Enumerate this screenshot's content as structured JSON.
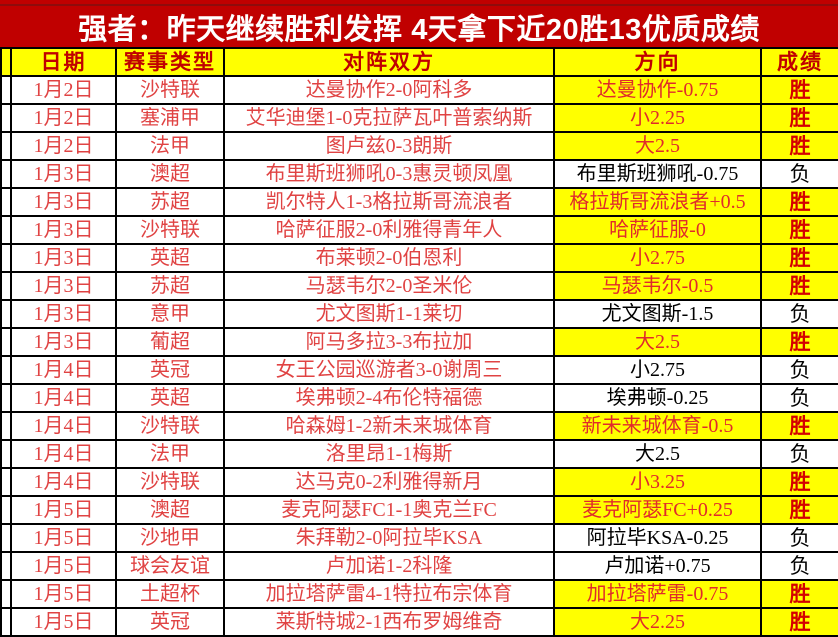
{
  "title": "强者：昨天继续胜利发挥 4天拿下近20胜13优质成绩",
  "colors": {
    "banner_background": "#c00000",
    "banner_text": "#ffffff",
    "highlight_yellow": "#ffff00",
    "header_text_red": "#c00000",
    "cell_text_red": "#e04343",
    "win_text_red": "#d40000",
    "loss_text_black": "#000000",
    "grid_border": "#000000"
  },
  "table": {
    "columns": [
      "日期",
      "赛事类型",
      "对阵双方",
      "方向",
      "成绩"
    ],
    "rows": [
      {
        "date": "1月2日",
        "league": "沙特联",
        "matchup": "达曼协作2-0阿科多",
        "direction": "达曼协作-0.75",
        "result": "胜",
        "highlighted": true
      },
      {
        "date": "1月2日",
        "league": "塞浦甲",
        "matchup": "艾华迪堡1-0克拉萨瓦叶普索纳斯",
        "direction": "小2.25",
        "result": "胜",
        "highlighted": true
      },
      {
        "date": "1月2日",
        "league": "法甲",
        "matchup": "图卢兹0-3朗斯",
        "direction": "大2.5",
        "result": "胜",
        "highlighted": true
      },
      {
        "date": "1月3日",
        "league": "澳超",
        "matchup": "布里斯班狮吼0-3惠灵顿凤凰",
        "direction": "布里斯班狮吼-0.75",
        "result": "负",
        "highlighted": false
      },
      {
        "date": "1月3日",
        "league": "苏超",
        "matchup": "凯尔特人1-3格拉斯哥流浪者",
        "direction": "格拉斯哥流浪者+0.5",
        "result": "胜",
        "highlighted": true
      },
      {
        "date": "1月3日",
        "league": "沙特联",
        "matchup": "哈萨征服2-0利雅得青年人",
        "direction": "哈萨征服-0",
        "result": "胜",
        "highlighted": true
      },
      {
        "date": "1月3日",
        "league": "英超",
        "matchup": "布莱顿2-0伯恩利",
        "direction": "小2.75",
        "result": "胜",
        "highlighted": true
      },
      {
        "date": "1月3日",
        "league": "苏超",
        "matchup": "马瑟韦尔2-0圣米伦",
        "direction": "马瑟韦尔-0.5",
        "result": "胜",
        "highlighted": true
      },
      {
        "date": "1月3日",
        "league": "意甲",
        "matchup": "尤文图斯1-1莱切",
        "direction": "尤文图斯-1.5",
        "result": "负",
        "highlighted": false
      },
      {
        "date": "1月3日",
        "league": "葡超",
        "matchup": "阿马多拉3-3布拉加",
        "direction": "大2.5",
        "result": "胜",
        "highlighted": true
      },
      {
        "date": "1月4日",
        "league": "英冠",
        "matchup": "女王公园巡游者3-0谢周三",
        "direction": "小2.75",
        "result": "负",
        "highlighted": false
      },
      {
        "date": "1月4日",
        "league": "英超",
        "matchup": "埃弗顿2-4布伦特福德",
        "direction": "埃弗顿-0.25",
        "result": "负",
        "highlighted": false
      },
      {
        "date": "1月4日",
        "league": "沙特联",
        "matchup": "哈森姆1-2新未来城体育",
        "direction": "新未来城体育-0.5",
        "result": "胜",
        "highlighted": true
      },
      {
        "date": "1月4日",
        "league": "法甲",
        "matchup": "洛里昂1-1梅斯",
        "direction": "大2.5",
        "result": "负",
        "highlighted": false
      },
      {
        "date": "1月4日",
        "league": "沙特联",
        "matchup": "达马克0-2利雅得新月",
        "direction": "小3.25",
        "result": "胜",
        "highlighted": true
      },
      {
        "date": "1月5日",
        "league": "澳超",
        "matchup": "麦克阿瑟FC1-1奥克兰FC",
        "direction": "麦克阿瑟FC+0.25",
        "result": "胜",
        "highlighted": true
      },
      {
        "date": "1月5日",
        "league": "沙地甲",
        "matchup": "朱拜勒2-0阿拉毕KSA",
        "direction": "阿拉毕KSA-0.25",
        "result": "负",
        "highlighted": false
      },
      {
        "date": "1月5日",
        "league": "球会友谊",
        "matchup": "卢加诺1-2科隆",
        "direction": "卢加诺+0.75",
        "result": "负",
        "highlighted": false
      },
      {
        "date": "1月5日",
        "league": "土超杯",
        "matchup": "加拉塔萨雷4-1特拉布宗体育",
        "direction": "加拉塔萨雷-0.75",
        "result": "胜",
        "highlighted": true
      },
      {
        "date": "1月5日",
        "league": "英冠",
        "matchup": "莱斯特城2-1西布罗姆维奇",
        "direction": "大2.25",
        "result": "胜",
        "highlighted": true
      }
    ]
  }
}
